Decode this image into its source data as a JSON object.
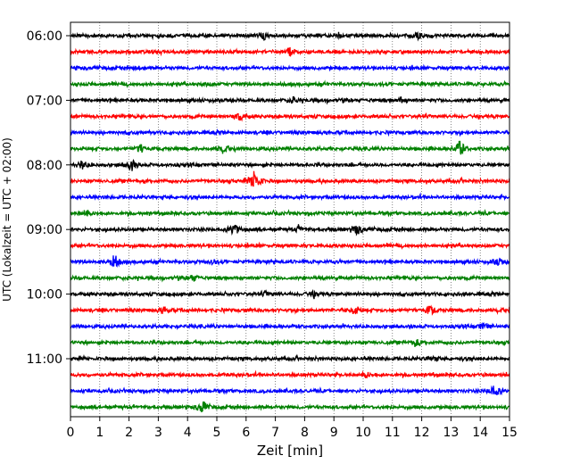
{
  "chart_data": {
    "type": "line",
    "title": "",
    "xlabel": "Zeit  [min]",
    "ylabel": "UTC (Lokalzeit = UTC + 02:00)",
    "xlim": [
      0,
      15
    ],
    "x_ticks": [
      0,
      1,
      2,
      3,
      4,
      5,
      6,
      7,
      8,
      9,
      10,
      11,
      12,
      13,
      14,
      15
    ],
    "x_grid": "dotted vertical lines at each minute",
    "y_tick_labels": [
      "06:00",
      "07:00",
      "08:00",
      "09:00",
      "10:00",
      "11:00"
    ],
    "y_tick_rows": [
      0,
      4,
      8,
      12,
      16,
      20
    ],
    "row_interval_minutes": 15,
    "colors": [
      "#000000",
      "#ff0000",
      "#0000ff",
      "#008000"
    ],
    "rows": [
      {
        "start": "06:00",
        "color": "#000000",
        "events": [
          [
            6.6,
            0.4
          ],
          [
            9.2,
            0.25
          ],
          [
            11.9,
            0.4
          ]
        ]
      },
      {
        "start": "06:15",
        "color": "#ff0000",
        "events": [
          [
            7.5,
            0.6
          ]
        ]
      },
      {
        "start": "06:30",
        "color": "#0000ff",
        "events": [
          [
            2.4,
            0.25
          ]
        ]
      },
      {
        "start": "06:45",
        "color": "#008000",
        "events": [
          [
            4.7,
            0.2
          ]
        ]
      },
      {
        "start": "07:00",
        "color": "#000000",
        "events": [
          [
            7.6,
            0.35
          ],
          [
            11.3,
            0.3
          ]
        ]
      },
      {
        "start": "07:15",
        "color": "#ff0000",
        "events": [
          [
            5.8,
            0.5
          ]
        ]
      },
      {
        "start": "07:30",
        "color": "#0000ff",
        "events": []
      },
      {
        "start": "07:45",
        "color": "#008000",
        "events": [
          [
            2.4,
            0.5
          ],
          [
            5.2,
            0.4
          ],
          [
            13.3,
            1.1
          ]
        ]
      },
      {
        "start": "08:00",
        "color": "#000000",
        "events": [
          [
            0.4,
            0.55
          ],
          [
            2.1,
            0.7
          ]
        ]
      },
      {
        "start": "08:15",
        "color": "#ff0000",
        "events": [
          [
            6.3,
            1.6
          ]
        ]
      },
      {
        "start": "08:30",
        "color": "#0000ff",
        "events": []
      },
      {
        "start": "08:45",
        "color": "#008000",
        "events": [
          [
            0.5,
            0.5
          ]
        ]
      },
      {
        "start": "09:00",
        "color": "#000000",
        "events": [
          [
            5.6,
            0.8
          ],
          [
            7.8,
            0.35
          ],
          [
            9.8,
            0.65
          ]
        ]
      },
      {
        "start": "09:15",
        "color": "#ff0000",
        "events": []
      },
      {
        "start": "09:30",
        "color": "#0000ff",
        "events": [
          [
            1.5,
            0.9
          ],
          [
            4.9,
            0.25
          ],
          [
            14.6,
            0.5
          ]
        ]
      },
      {
        "start": "09:45",
        "color": "#008000",
        "events": [
          [
            4.2,
            0.4
          ]
        ]
      },
      {
        "start": "10:00",
        "color": "#000000",
        "events": [
          [
            6.7,
            0.3
          ],
          [
            8.3,
            0.3
          ]
        ]
      },
      {
        "start": "10:15",
        "color": "#ff0000",
        "events": [
          [
            3.2,
            0.4
          ],
          [
            9.7,
            0.5
          ],
          [
            12.3,
            0.6
          ]
        ]
      },
      {
        "start": "10:30",
        "color": "#0000ff",
        "events": [
          [
            14.1,
            0.35
          ]
        ]
      },
      {
        "start": "10:45",
        "color": "#008000",
        "events": [
          [
            11.8,
            0.5
          ]
        ]
      },
      {
        "start": "11:00",
        "color": "#000000",
        "events": [
          [
            12.4,
            0.25
          ]
        ]
      },
      {
        "start": "11:15",
        "color": "#ff0000",
        "events": [
          [
            10.1,
            0.3
          ]
        ]
      },
      {
        "start": "11:30",
        "color": "#0000ff",
        "events": [
          [
            14.5,
            0.8
          ]
        ]
      },
      {
        "start": "11:45",
        "color": "#008000",
        "events": [
          [
            4.5,
            0.9
          ]
        ]
      }
    ]
  }
}
